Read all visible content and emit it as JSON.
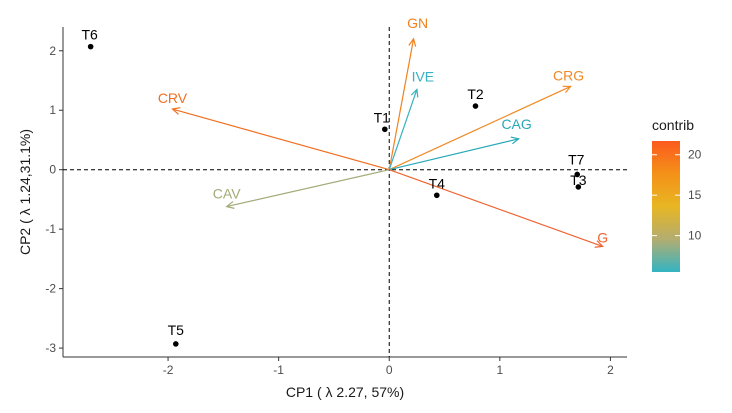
{
  "chart_data": {
    "type": "scatter",
    "xlabel": "CP1 ( λ 2.27, 57%)",
    "ylabel": "CP2 ( λ 1.24,31.1%)",
    "xlim": [
      -2.95,
      2.15
    ],
    "ylim": [
      -3.15,
      2.4
    ],
    "x_ticks": [
      -2,
      -1,
      0,
      1,
      2
    ],
    "y_ticks": [
      -3,
      -2,
      -1,
      0,
      1,
      2
    ],
    "grid": false,
    "reference_lines": {
      "x": 0,
      "y": 0,
      "style": "dashed"
    },
    "points": [
      {
        "label": "T6",
        "x": -2.7,
        "y": 2.07
      },
      {
        "label": "T1",
        "x": -0.04,
        "y": 0.68
      },
      {
        "label": "T2",
        "x": 0.78,
        "y": 1.07
      },
      {
        "label": "T4",
        "x": 0.43,
        "y": -0.43
      },
      {
        "label": "T7",
        "x": 1.7,
        "y": -0.08
      },
      {
        "label": "T3",
        "x": 1.71,
        "y": -0.29
      },
      {
        "label": "T5",
        "x": -1.93,
        "y": -2.93
      }
    ],
    "variables": [
      {
        "label": "GN",
        "x": 0.22,
        "y": 2.2,
        "contrib": 19,
        "color": "#f2811e"
      },
      {
        "label": "IVE",
        "x": 0.25,
        "y": 1.35,
        "contrib": 7,
        "color": "#35b2c0"
      },
      {
        "label": "CRG",
        "x": 1.64,
        "y": 1.4,
        "contrib": 17,
        "color": "#ef8a24"
      },
      {
        "label": "CAG",
        "x": 1.17,
        "y": 0.52,
        "contrib": 6.5,
        "color": "#27a8b8"
      },
      {
        "label": "CRV",
        "x": -1.96,
        "y": 1.02,
        "contrib": 20,
        "color": "#f07020"
      },
      {
        "label": "CAV",
        "x": -1.47,
        "y": -0.62,
        "contrib": 10.5,
        "color": "#a2ab78"
      },
      {
        "label": "G",
        "x": 1.93,
        "y": -1.29,
        "contrib": 21,
        "color": "#ee6533"
      }
    ],
    "legend": {
      "title": "contrib",
      "position": "right",
      "ticks": [
        10,
        15,
        20
      ],
      "range": [
        5.5,
        21.7
      ],
      "colors": [
        "#fc5a1e",
        "#f49118",
        "#e8b623",
        "#b3ad70",
        "#33b4c3"
      ]
    }
  }
}
